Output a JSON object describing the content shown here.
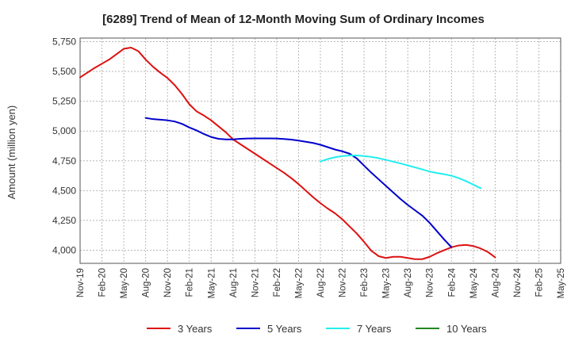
{
  "chart_data": {
    "type": "line",
    "title": "[6289]  Trend of Mean of 12-Month Moving Sum of Ordinary Incomes",
    "xlabel": "",
    "ylabel": "Amount (million yen)",
    "ylim": [
      3890,
      5780
    ],
    "yticks": [
      4000,
      4250,
      4500,
      4750,
      5000,
      5250,
      5500,
      5750
    ],
    "ytick_labels": [
      "4,000",
      "4,250",
      "4,500",
      "4,750",
      "5,000",
      "5,250",
      "5,500",
      "5,750"
    ],
    "x_labels": [
      "Nov-19",
      "Feb-20",
      "May-20",
      "Aug-20",
      "Nov-20",
      "Feb-21",
      "May-21",
      "Aug-21",
      "Nov-21",
      "Feb-22",
      "May-22",
      "Aug-22",
      "Nov-22",
      "Feb-23",
      "May-23",
      "Aug-23",
      "Nov-23",
      "Feb-24",
      "May-24",
      "Aug-24",
      "Nov-24",
      "Feb-25",
      "May-25"
    ],
    "grid": true,
    "legend_position": "bottom",
    "series": [
      {
        "name": "3 Years",
        "color": "#dd1111",
        "start_index": 0,
        "values": [
          5450,
          5490,
          5530,
          5565,
          5600,
          5645,
          5690,
          5700,
          5670,
          5600,
          5540,
          5490,
          5445,
          5385,
          5310,
          5225,
          5165,
          5130,
          5090,
          5040,
          4990,
          4930,
          4890,
          4850,
          4810,
          4770,
          4730,
          4690,
          4650,
          4605,
          4555,
          4500,
          4445,
          4395,
          4350,
          4310,
          4260,
          4200,
          4140,
          4070,
          3995,
          3950,
          3935,
          3945,
          3945,
          3935,
          3925,
          3925,
          3945,
          3975,
          4000,
          4025,
          4040,
          4045,
          4035,
          4015,
          3985,
          3940
        ]
      },
      {
        "name": "5 Years",
        "color": "#0000cc",
        "start_index": 9,
        "values": [
          5110,
          5100,
          5095,
          5090,
          5080,
          5060,
          5030,
          5005,
          4975,
          4950,
          4935,
          4930,
          4930,
          4935,
          4937,
          4938,
          4938,
          4938,
          4937,
          4933,
          4928,
          4920,
          4910,
          4900,
          4885,
          4865,
          4845,
          4830,
          4810,
          4770,
          4710,
          4650,
          4595,
          4540,
          4485,
          4430,
          4380,
          4335,
          4290,
          4230,
          4160,
          4090,
          4025
        ]
      },
      {
        "name": "7 Years",
        "color": "#22eeee",
        "start_index": 33,
        "values": [
          4745,
          4765,
          4780,
          4790,
          4795,
          4795,
          4790,
          4783,
          4772,
          4758,
          4743,
          4728,
          4712,
          4695,
          4678,
          4660,
          4648,
          4638,
          4625,
          4605,
          4580,
          4550,
          4520
        ]
      },
      {
        "name": "10 Years",
        "color": "#228822",
        "start_index": 0,
        "values": []
      }
    ]
  }
}
